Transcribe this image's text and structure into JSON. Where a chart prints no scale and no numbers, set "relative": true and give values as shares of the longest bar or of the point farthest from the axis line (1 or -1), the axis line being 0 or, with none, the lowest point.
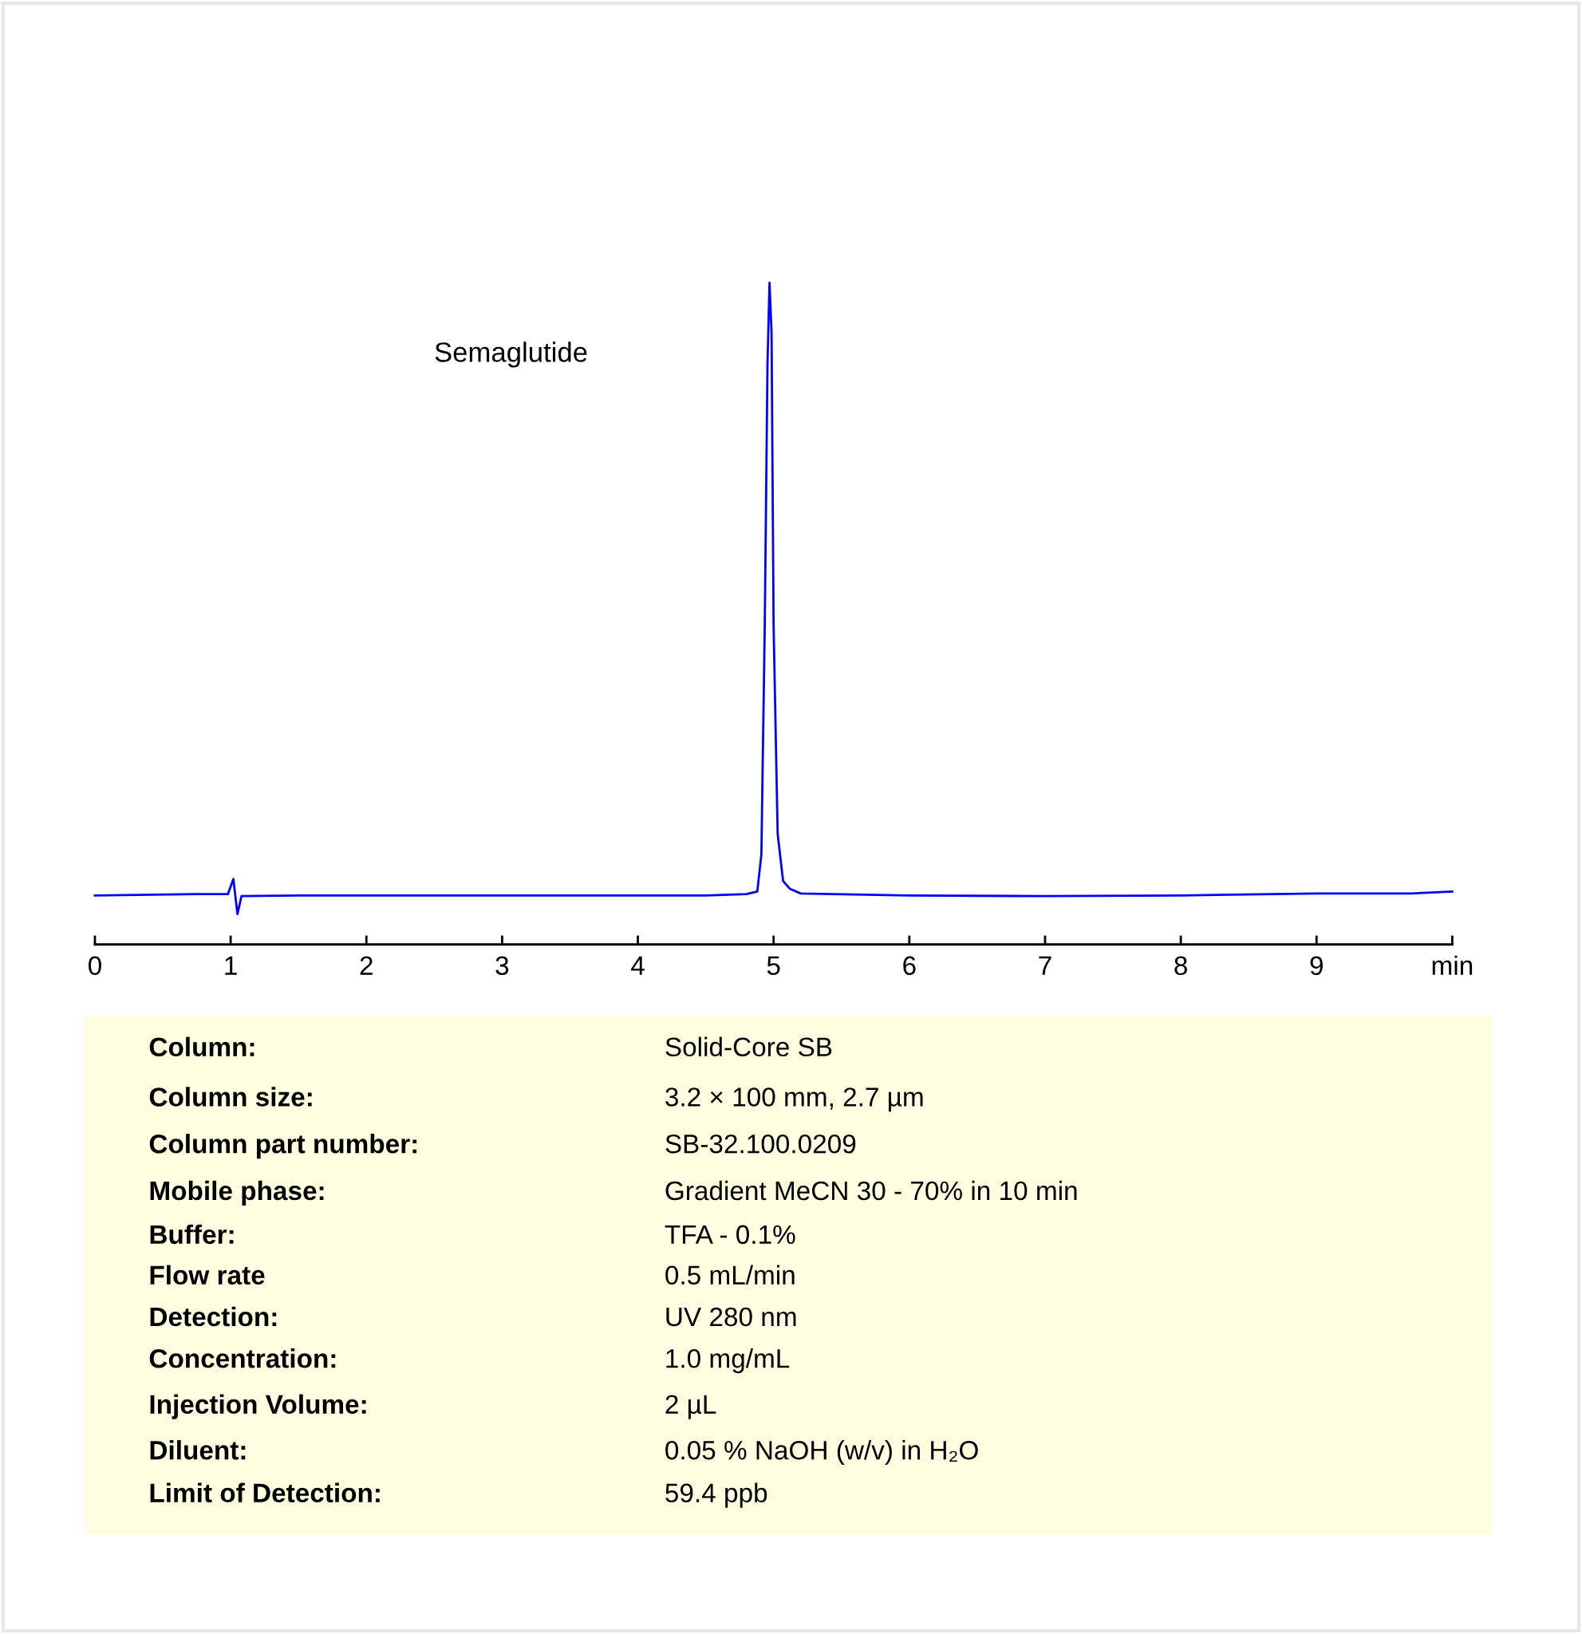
{
  "chart_data": {
    "type": "line",
    "relative": true,
    "x": [
      0,
      0.75,
      0.98,
      1.02,
      1.05,
      1.08,
      1.5,
      3,
      4.5,
      4.8,
      4.88,
      4.91,
      4.935,
      4.955,
      4.97,
      4.985,
      5.0,
      5.03,
      5.07,
      5.12,
      5.2,
      6,
      7,
      8,
      9,
      9.7,
      10
    ],
    "series": [
      {
        "color": "#0000ff",
        "values": [
          0.074,
          0.076,
          0.076,
          0.099,
          0.046,
          0.073,
          0.074,
          0.074,
          0.074,
          0.076,
          0.08,
          0.136,
          0.483,
          0.877,
          1.0,
          0.924,
          0.483,
          0.167,
          0.096,
          0.084,
          0.077,
          0.074,
          0.073,
          0.074,
          0.077,
          0.077,
          0.08
        ]
      }
    ],
    "xlim": [
      0,
      10
    ],
    "xticks": [
      0,
      1,
      2,
      3,
      4,
      5,
      6,
      7,
      8,
      9,
      {
        "value": 10,
        "label": "min"
      }
    ],
    "grid": false,
    "legend": false,
    "marker": "none",
    "line_style": "solid",
    "annotations": [
      "Semaglutide",
      "Column:",
      "Solid-Core SB",
      "Column size:",
      "3.2 × 100 mm, 2.7 µm",
      "Column part number:",
      "SB-32.100.0209",
      "Mobile phase:",
      "Gradient MeCN 30 - 70% in 10 min",
      "Buffer:",
      "TFA - 0.1%",
      "Flow rate",
      "0.5 mL/min",
      "Detection:",
      "UV 280 nm",
      "Concentration:",
      "1.0 mg/mL",
      "Injection Volume:",
      "2 µL",
      "Diluent:",
      "0.05 % NaOH (w/v) in H₂O",
      "Limit of Detection:",
      "59.4 ppb"
    ]
  }
}
